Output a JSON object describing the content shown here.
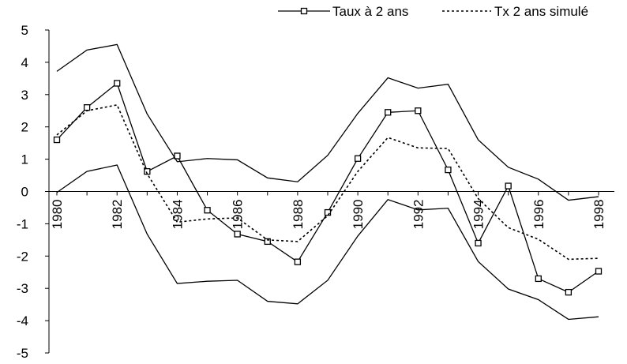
{
  "chart_data": {
    "type": "line",
    "title": "",
    "xlabel": "",
    "ylabel": "",
    "x": [
      1980,
      1981,
      1982,
      1983,
      1984,
      1985,
      1986,
      1987,
      1988,
      1989,
      1990,
      1991,
      1992,
      1993,
      1994,
      1995,
      1996,
      1997,
      1998
    ],
    "x_tick_labels": [
      "1980",
      "1982",
      "1984",
      "1986",
      "1988",
      "1990",
      "1992",
      "1994",
      "1996",
      "1998"
    ],
    "y_tick_labels": [
      "5",
      "4",
      "3",
      "2",
      "1",
      "0",
      "-1",
      "-2",
      "-3",
      "-4",
      "-5"
    ],
    "ylim": [
      -5,
      5
    ],
    "grid": false,
    "legend_position": "top",
    "series": [
      {
        "name": "Taux à 2 ans",
        "style": "solid-square-markers",
        "values": [
          1.6,
          2.6,
          3.35,
          0.62,
          1.1,
          -0.58,
          -1.32,
          -1.55,
          -2.18,
          -0.65,
          1.02,
          2.45,
          2.5,
          0.67,
          -1.6,
          0.17,
          -2.7,
          -3.12,
          -2.47
        ]
      },
      {
        "name": "Tx 2 ans simulé",
        "style": "dotted",
        "values": [
          1.75,
          2.5,
          2.68,
          0.55,
          -0.95,
          -0.85,
          -0.82,
          -1.5,
          -1.55,
          -0.75,
          0.62,
          1.67,
          1.35,
          1.33,
          -0.22,
          -1.12,
          -1.48,
          -2.1,
          -2.07
        ]
      },
      {
        "name": "",
        "style": "solid-band-upper",
        "values": [
          3.72,
          4.38,
          4.55,
          2.4,
          0.92,
          1.02,
          0.98,
          0.42,
          0.3,
          1.12,
          2.42,
          3.52,
          3.2,
          3.32,
          1.6,
          0.75,
          0.38,
          -0.27,
          -0.16
        ]
      },
      {
        "name": "",
        "style": "solid-band-lower",
        "values": [
          -0.03,
          0.62,
          0.82,
          -1.32,
          -2.85,
          -2.78,
          -2.75,
          -3.4,
          -3.48,
          -2.75,
          -1.38,
          -0.25,
          -0.57,
          -0.52,
          -2.17,
          -3.02,
          -3.35,
          -3.96,
          -3.88
        ]
      }
    ],
    "colors": {
      "line": "#000000",
      "axis": "#000000",
      "background": "#ffffff"
    }
  }
}
